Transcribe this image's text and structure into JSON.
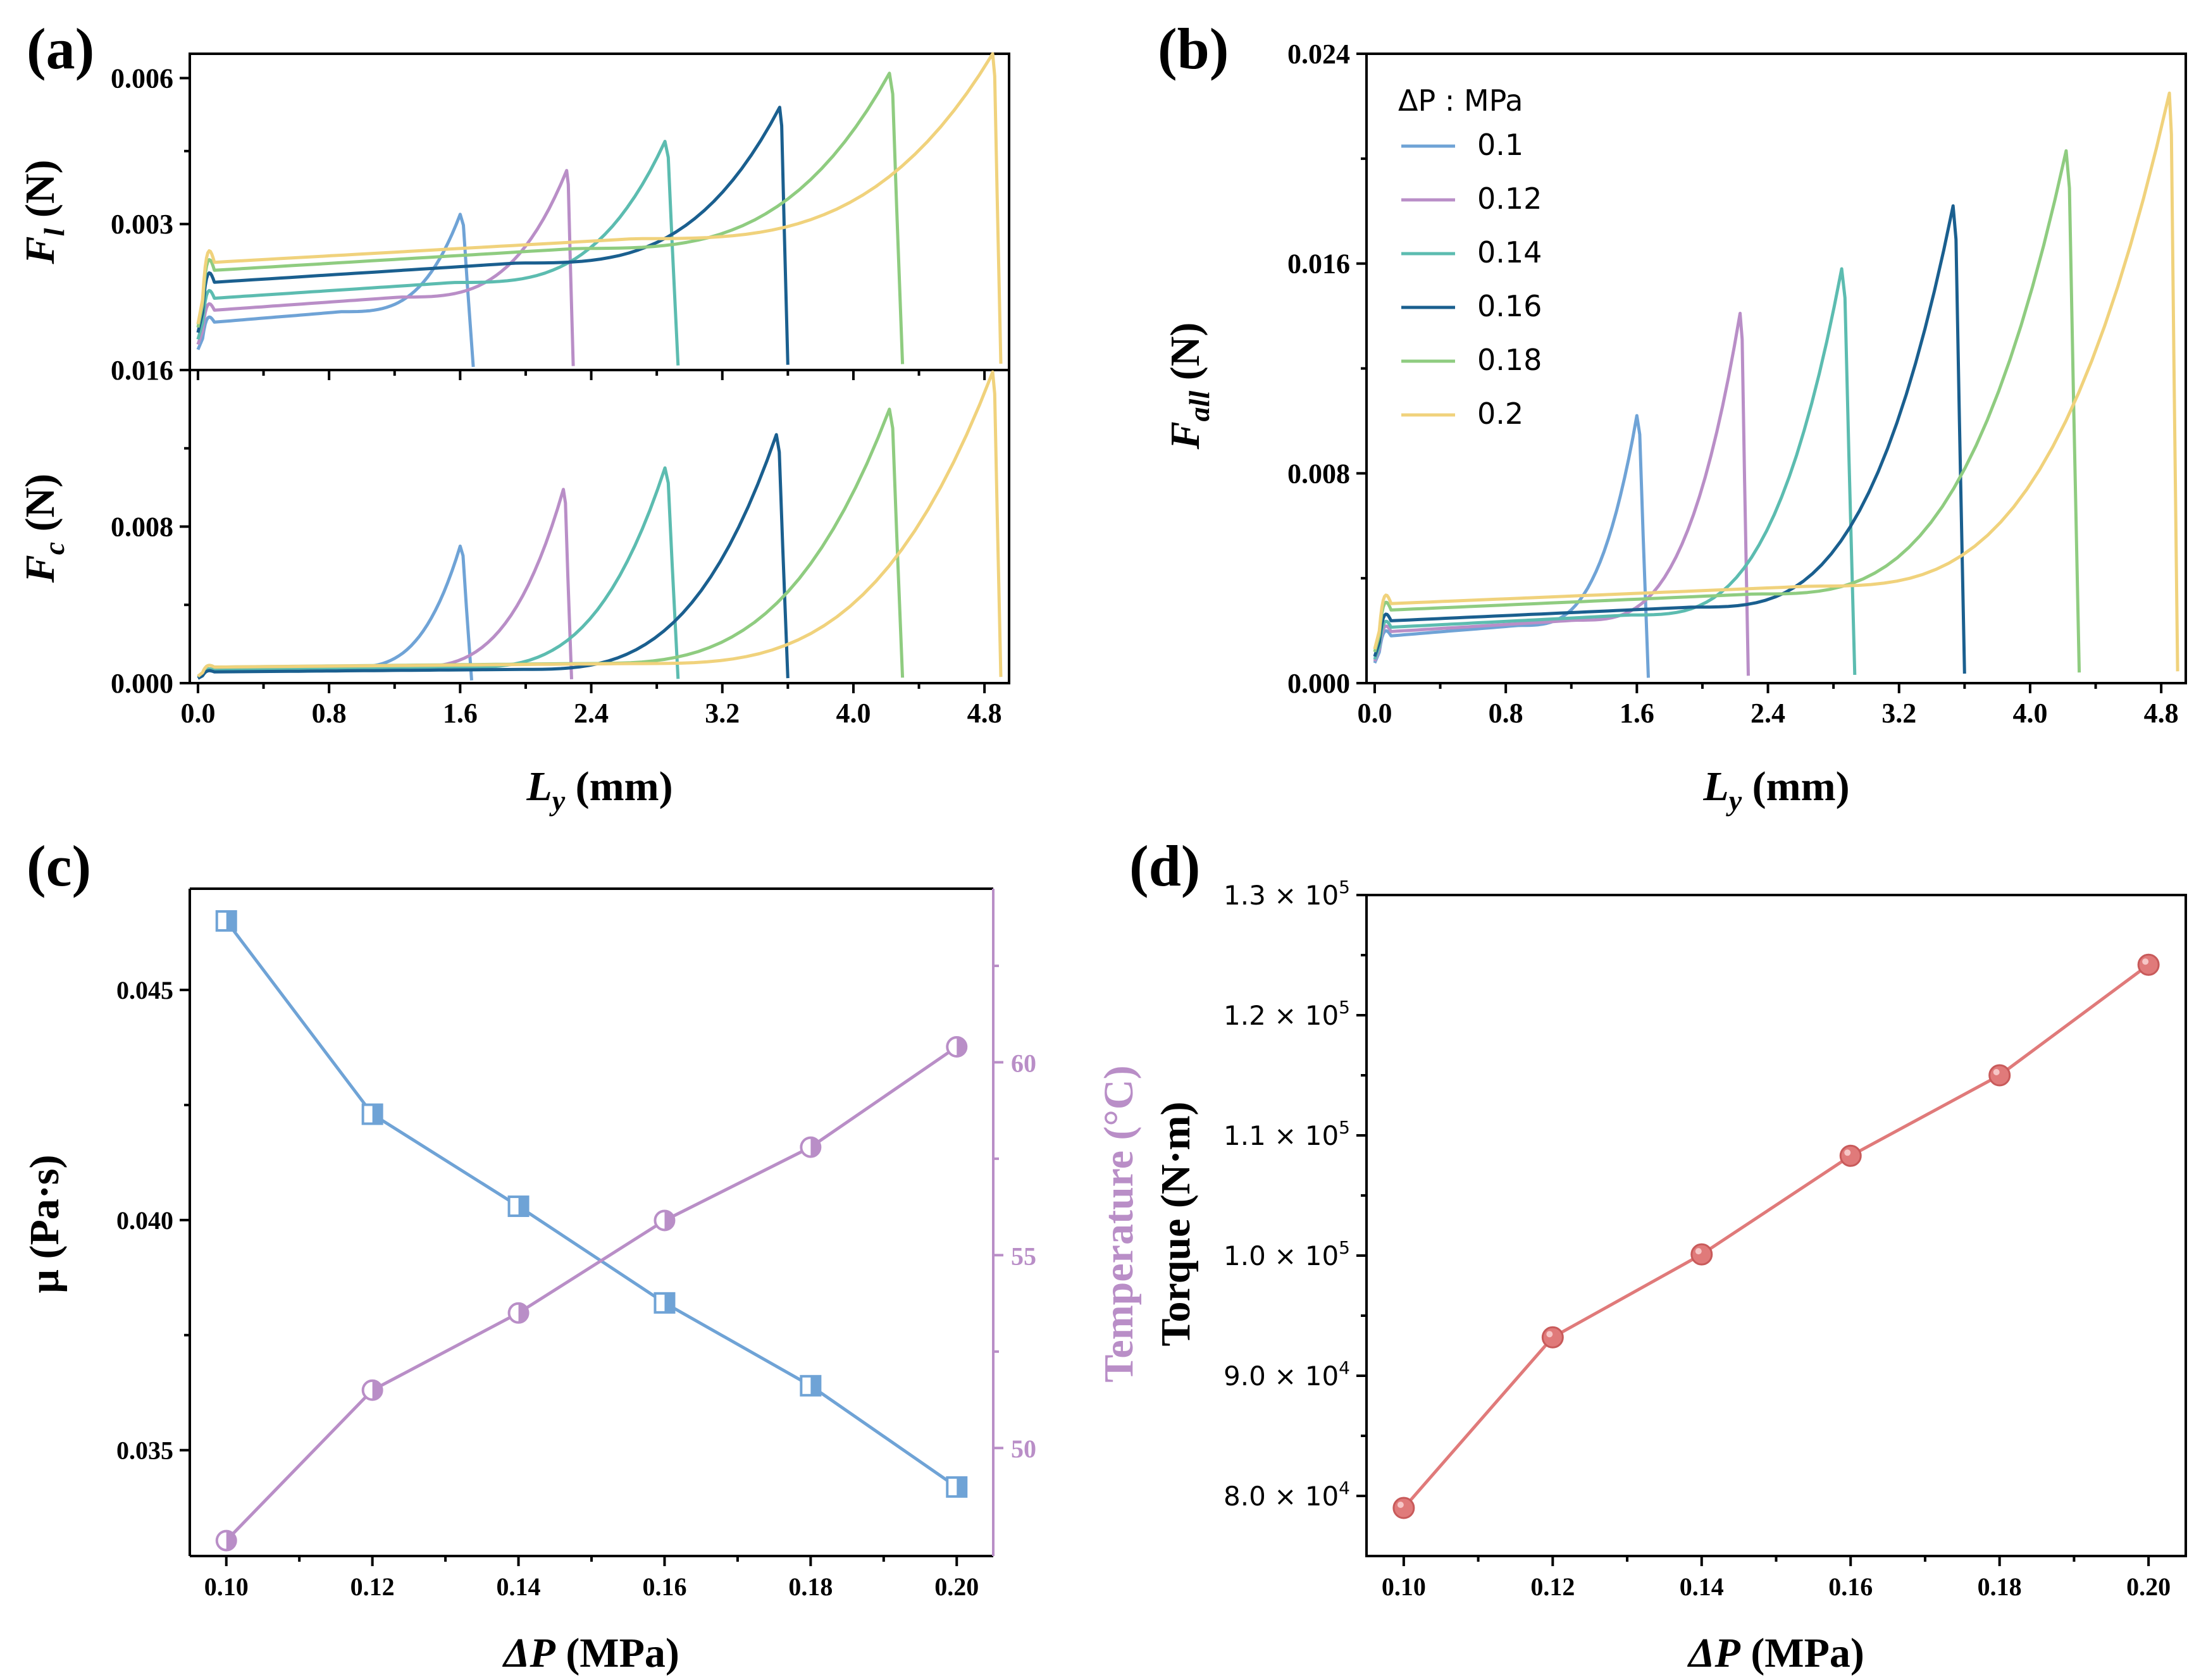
{
  "colors": {
    "series": [
      "#6fa3d6",
      "#b98ec7",
      "#5cbcb0",
      "#1a5f8f",
      "#8fcc80",
      "#f0d27c"
    ],
    "mu": "#6fa3d6",
    "temperature": "#b98ec7",
    "torque": "#e07a7a"
  },
  "chart_data": [
    {
      "panel": "(a)",
      "type": "line",
      "subplot": "upper",
      "ylabel_main": "F",
      "ylabel_sub": "l",
      "ylabel_unit": "(N)",
      "ylim": [
        0,
        0.0065
      ],
      "yticks": [
        "0.003",
        "0.006"
      ],
      "series": [
        {
          "name": "0.1",
          "plateau": 0.0012,
          "peak": 0.0032,
          "peak_x": 1.6,
          "end_x": 1.68
        },
        {
          "name": "0.12",
          "plateau": 0.0015,
          "peak": 0.0041,
          "peak_x": 2.25,
          "end_x": 2.29
        },
        {
          "name": "0.14",
          "plateau": 0.0018,
          "peak": 0.0047,
          "peak_x": 2.85,
          "end_x": 2.93
        },
        {
          "name": "0.16",
          "plateau": 0.0022,
          "peak": 0.0054,
          "peak_x": 3.55,
          "end_x": 3.6
        },
        {
          "name": "0.18",
          "plateau": 0.0025,
          "peak": 0.0061,
          "peak_x": 4.22,
          "end_x": 4.3
        },
        {
          "name": "0.2",
          "plateau": 0.0027,
          "peak": 0.0065,
          "peak_x": 4.85,
          "end_x": 4.9
        }
      ]
    },
    {
      "panel": "(a)",
      "type": "line",
      "subplot": "lower",
      "ylabel_main": "F",
      "ylabel_sub": "c",
      "ylabel_unit": "(N)",
      "xlabel_main": "L",
      "xlabel_sub": "y",
      "xlabel_unit": "(mm)",
      "xlim": [
        -0.05,
        4.95
      ],
      "xticks": [
        "0.0",
        "0.8",
        "1.6",
        "2.4",
        "3.2",
        "4.0",
        "4.8"
      ],
      "ylim": [
        0,
        0.016
      ],
      "yticks": [
        "0.000",
        "0.008",
        "0.016"
      ],
      "series": [
        {
          "name": "0.1",
          "plateau": 0.0008,
          "peak": 0.007,
          "peak_x": 1.6,
          "end_x": 1.67
        },
        {
          "name": "0.12",
          "plateau": 0.0008,
          "peak": 0.0099,
          "peak_x": 2.23,
          "end_x": 2.28
        },
        {
          "name": "0.14",
          "plateau": 0.0008,
          "peak": 0.011,
          "peak_x": 2.85,
          "end_x": 2.93
        },
        {
          "name": "0.16",
          "plateau": 0.0007,
          "peak": 0.0127,
          "peak_x": 3.53,
          "end_x": 3.6
        },
        {
          "name": "0.18",
          "plateau": 0.001,
          "peak": 0.014,
          "peak_x": 4.22,
          "end_x": 4.3
        },
        {
          "name": "0.2",
          "plateau": 0.001,
          "peak": 0.0159,
          "peak_x": 4.85,
          "end_x": 4.9
        }
      ]
    },
    {
      "panel": "(b)",
      "type": "line",
      "ylabel_main": "F",
      "ylabel_sub": "all",
      "ylabel_unit": "(N)",
      "xlabel_main": "L",
      "xlabel_sub": "y",
      "xlabel_unit": "(mm)",
      "xlim": [
        -0.05,
        4.95
      ],
      "xticks": [
        "0.0",
        "0.8",
        "1.6",
        "2.4",
        "3.2",
        "4.0",
        "4.8"
      ],
      "ylim": [
        0,
        0.024
      ],
      "yticks": [
        "0.000",
        "0.008",
        "0.016",
        "0.024"
      ],
      "legend_title": "ΔP : MPa",
      "legend_position": "top-left",
      "series": [
        {
          "name": "0.1",
          "plateau": 0.0022,
          "peak": 0.0102,
          "peak_x": 1.6,
          "end_x": 1.67
        },
        {
          "name": "0.12",
          "plateau": 0.0024,
          "peak": 0.0141,
          "peak_x": 2.23,
          "end_x": 2.28
        },
        {
          "name": "0.14",
          "plateau": 0.0026,
          "peak": 0.0158,
          "peak_x": 2.85,
          "end_x": 2.93
        },
        {
          "name": "0.16",
          "plateau": 0.0029,
          "peak": 0.0182,
          "peak_x": 3.53,
          "end_x": 3.6
        },
        {
          "name": "0.18",
          "plateau": 0.0034,
          "peak": 0.0203,
          "peak_x": 4.22,
          "end_x": 4.3
        },
        {
          "name": "0.2",
          "plateau": 0.0037,
          "peak": 0.0225,
          "peak_x": 4.85,
          "end_x": 4.9
        }
      ]
    },
    {
      "panel": "(c)",
      "type": "line",
      "x": [
        0.1,
        0.12,
        0.14,
        0.16,
        0.18,
        0.2
      ],
      "xlim": [
        0.095,
        0.205
      ],
      "xticks": [
        "0.10",
        "0.12",
        "0.14",
        "0.16",
        "0.18",
        "0.20"
      ],
      "xlabel_main": "ΔP",
      "xlabel_unit": "(MPa)",
      "ylabel_left": "μ (Pa·s)",
      "ylim_left": [
        0.0327,
        0.0472
      ],
      "yticks_left": [
        "0.035",
        "0.040",
        "0.045"
      ],
      "ylabel_right": "Temperature (°C)",
      "ylim_right": [
        47.2,
        64.5
      ],
      "yticks_right": [
        "50",
        "55",
        "60"
      ],
      "series": [
        {
          "name": "μ",
          "axis": "left",
          "marker": "square",
          "values": [
            0.0465,
            0.0423,
            0.0403,
            0.0382,
            0.0364,
            0.0342
          ]
        },
        {
          "name": "Temperature",
          "axis": "right",
          "marker": "circle",
          "values": [
            47.6,
            51.5,
            53.5,
            55.9,
            57.8,
            60.4
          ]
        }
      ]
    },
    {
      "panel": "(d)",
      "type": "line",
      "x": [
        0.1,
        0.12,
        0.14,
        0.16,
        0.18,
        0.2
      ],
      "xlim": [
        0.095,
        0.205
      ],
      "xticks": [
        "0.10",
        "0.12",
        "0.14",
        "0.16",
        "0.18",
        "0.20"
      ],
      "xlabel_main": "ΔP",
      "xlabel_unit": "(MPa)",
      "ylabel": "Torque (N·m)",
      "ylim": [
        75000,
        130000
      ],
      "yticks": [
        {
          "mant": "8.0",
          "exp": "4"
        },
        {
          "mant": "9.0",
          "exp": "4"
        },
        {
          "mant": "1.0",
          "exp": "5"
        },
        {
          "mant": "1.1",
          "exp": "5"
        },
        {
          "mant": "1.2",
          "exp": "5"
        },
        {
          "mant": "1.3",
          "exp": "5"
        }
      ],
      "series": [
        {
          "name": "Torque",
          "marker": "circle",
          "values": [
            79000,
            93200,
            100100,
            108300,
            115000,
            124200
          ]
        }
      ]
    }
  ]
}
